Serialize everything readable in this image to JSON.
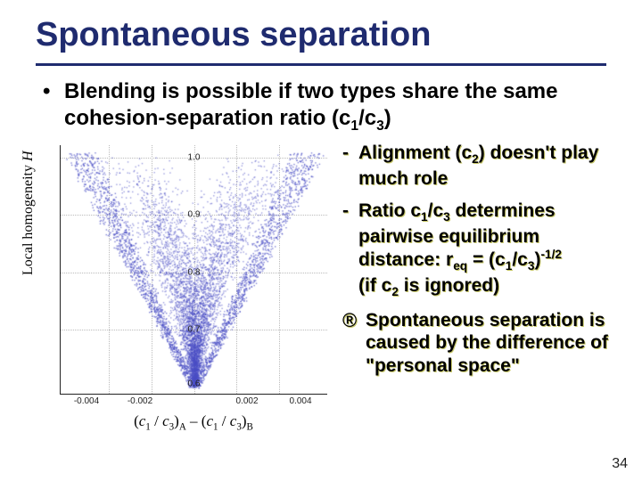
{
  "title": "Spontaneous separation",
  "bullet": {
    "pre": "Blending is possible if two types share the same cohesion-separation ratio (c",
    "s1": "1",
    "mid": "/c",
    "s2": "3",
    "post": ")"
  },
  "sub1": {
    "dash": "-",
    "l1": "Alignment (c",
    "l1s": "2",
    "l1b": ") doesn't",
    "l2": "play much role"
  },
  "sub2": {
    "dash": "-",
    "a": "Ratio c",
    "as1": "1",
    "b": "/c",
    "as2": "3",
    "c": " determines pairwise equilibrium distance: r",
    "eqs": "eq",
    "d": " = (c",
    "ds1": "1",
    "e": "/c",
    "ds2": "3",
    "f": ")",
    "sup": "-1/2",
    "g": "(if c",
    "gs": "2",
    "h": " is ignored)"
  },
  "sub3": {
    "arrow": "®",
    "l1": "Spontaneous separation is caused by the difference of ",
    "q1": "\"personal space\""
  },
  "chart": {
    "ylabel_a": "Local homogeneity ",
    "ylabel_b": "H",
    "xlabel_a": "(",
    "xlabel_b": "c",
    "xs1": "1",
    "xlabel_c": " / ",
    "xlabel_d": "c",
    "xs2": "3",
    "xlabel_e": ")",
    "xA": "A",
    "xlabel_f": " – (",
    "xlabel_g": "c",
    "xs3": "1",
    "xlabel_h": " / ",
    "xlabel_i": "c",
    "xs4": "3",
    "xlabel_j": ")",
    "xB": "B",
    "xticks": [
      "-0.004",
      "-0.002",
      "0.002",
      "0.004"
    ],
    "yticks": [
      "1.0",
      "0.9",
      "0.8",
      "0.7",
      "0.6"
    ],
    "point_color": "#4a4fc4",
    "bg": "#ffffff"
  },
  "slide_num": "34"
}
